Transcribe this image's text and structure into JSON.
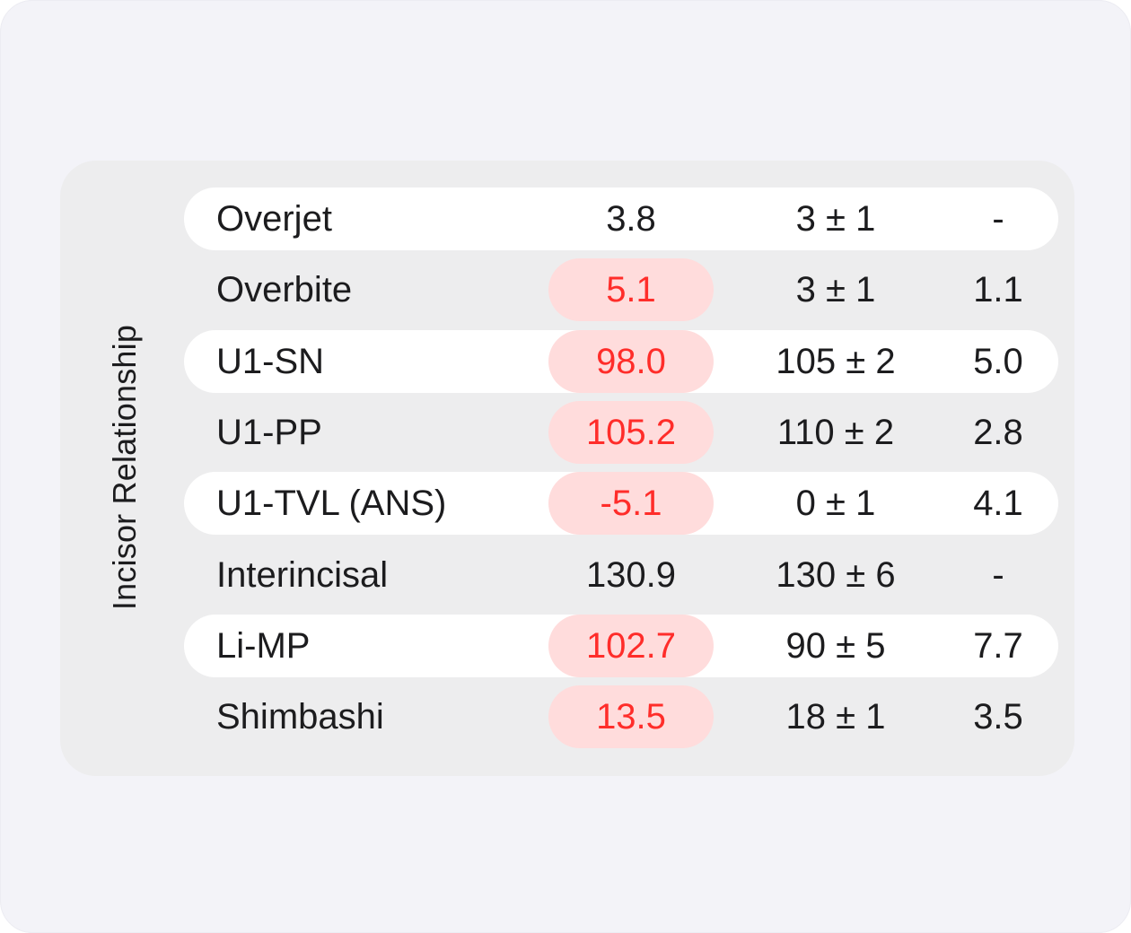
{
  "section": {
    "title": "Incisor Relationship"
  },
  "colors": {
    "alert_text": "#ff2d2a",
    "alert_pill": "#ffdcdc",
    "row_stripe": "#ffffff",
    "card_bg": "#ededee",
    "page_bg": "#f3f3f8"
  },
  "rows": [
    {
      "name": "Overjet",
      "value": "3.8",
      "norm": "3 ± 1",
      "deviation": "-",
      "alert": false,
      "striped": true
    },
    {
      "name": "Overbite",
      "value": "5.1",
      "norm": "3 ± 1",
      "deviation": "1.1",
      "alert": true,
      "striped": false
    },
    {
      "name": "U1-SN",
      "value": "98.0",
      "norm": "105 ± 2",
      "deviation": "5.0",
      "alert": true,
      "striped": true
    },
    {
      "name": "U1-PP",
      "value": "105.2",
      "norm": "110 ± 2",
      "deviation": "2.8",
      "alert": true,
      "striped": false
    },
    {
      "name": "U1-TVL (ANS)",
      "value": "-5.1",
      "norm": "0 ± 1",
      "deviation": "4.1",
      "alert": true,
      "striped": true
    },
    {
      "name": "Interincisal",
      "value": "130.9",
      "norm": "130 ± 6",
      "deviation": "-",
      "alert": false,
      "striped": false
    },
    {
      "name": "Li-MP",
      "value": "102.7",
      "norm": "90 ± 5",
      "deviation": "7.7",
      "alert": true,
      "striped": true
    },
    {
      "name": "Shimbashi",
      "value": "13.5",
      "norm": "18 ± 1",
      "deviation": "3.5",
      "alert": true,
      "striped": false
    }
  ]
}
